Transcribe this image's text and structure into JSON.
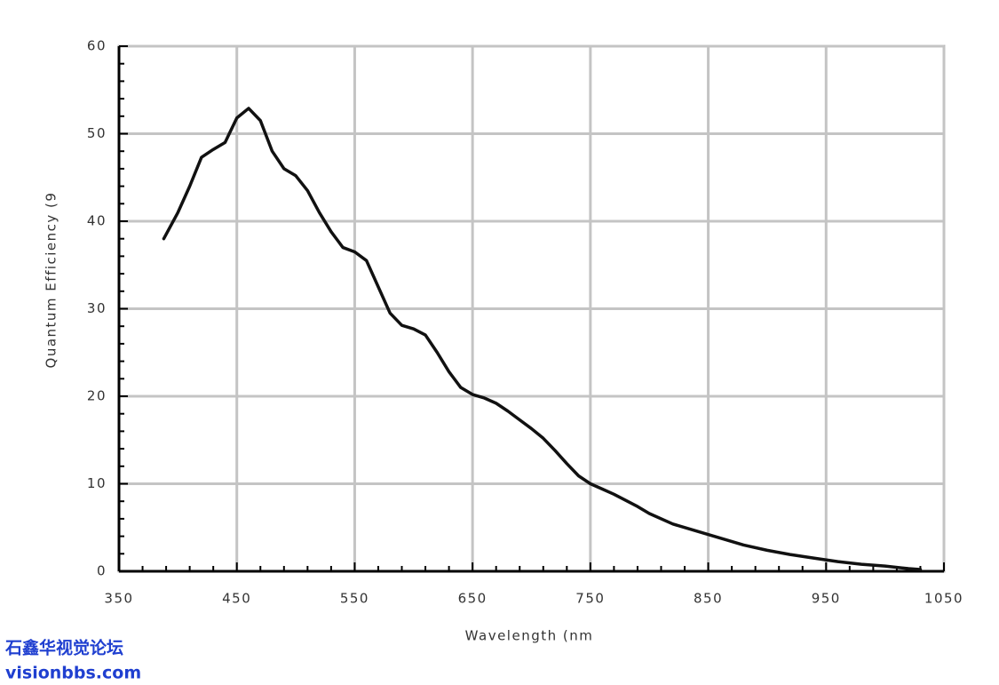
{
  "chart_data": {
    "type": "line",
    "xlabel": "Wavelength (nm",
    "ylabel": "Quantum Efficiency (9",
    "x": [
      388,
      400,
      410,
      420,
      430,
      440,
      450,
      460,
      470,
      480,
      490,
      500,
      510,
      520,
      530,
      540,
      550,
      560,
      570,
      580,
      590,
      600,
      610,
      620,
      630,
      640,
      650,
      660,
      670,
      680,
      690,
      700,
      710,
      720,
      730,
      740,
      750,
      760,
      770,
      780,
      790,
      800,
      820,
      840,
      860,
      880,
      900,
      920,
      940,
      960,
      980,
      1000,
      1020,
      1030
    ],
    "values": [
      38,
      41,
      44,
      47.3,
      48.2,
      49,
      51.8,
      52.9,
      51.5,
      48,
      46,
      45.2,
      43.5,
      41,
      38.8,
      37,
      36.5,
      35.5,
      32.5,
      29.5,
      28.1,
      27.7,
      27,
      25,
      22.8,
      21,
      20.2,
      19.8,
      19.2,
      18.3,
      17.3,
      16.3,
      15.2,
      13.8,
      12.3,
      10.9,
      10,
      9.4,
      8.8,
      8.1,
      7.4,
      6.6,
      5.4,
      4.6,
      3.8,
      3.0,
      2.4,
      1.9,
      1.5,
      1.1,
      0.8,
      0.6,
      0.3,
      0.2
    ],
    "color": "#111111",
    "xlim": [
      350,
      1050
    ],
    "xticks": [
      350,
      450,
      550,
      650,
      750,
      850,
      950,
      1050
    ],
    "ylim": [
      0,
      60
    ],
    "yticks": [
      0,
      10,
      20,
      30,
      40,
      50,
      60
    ],
    "grid": true
  },
  "watermark": [
    "石鑫华视觉论坛",
    "visionbbs.com"
  ]
}
